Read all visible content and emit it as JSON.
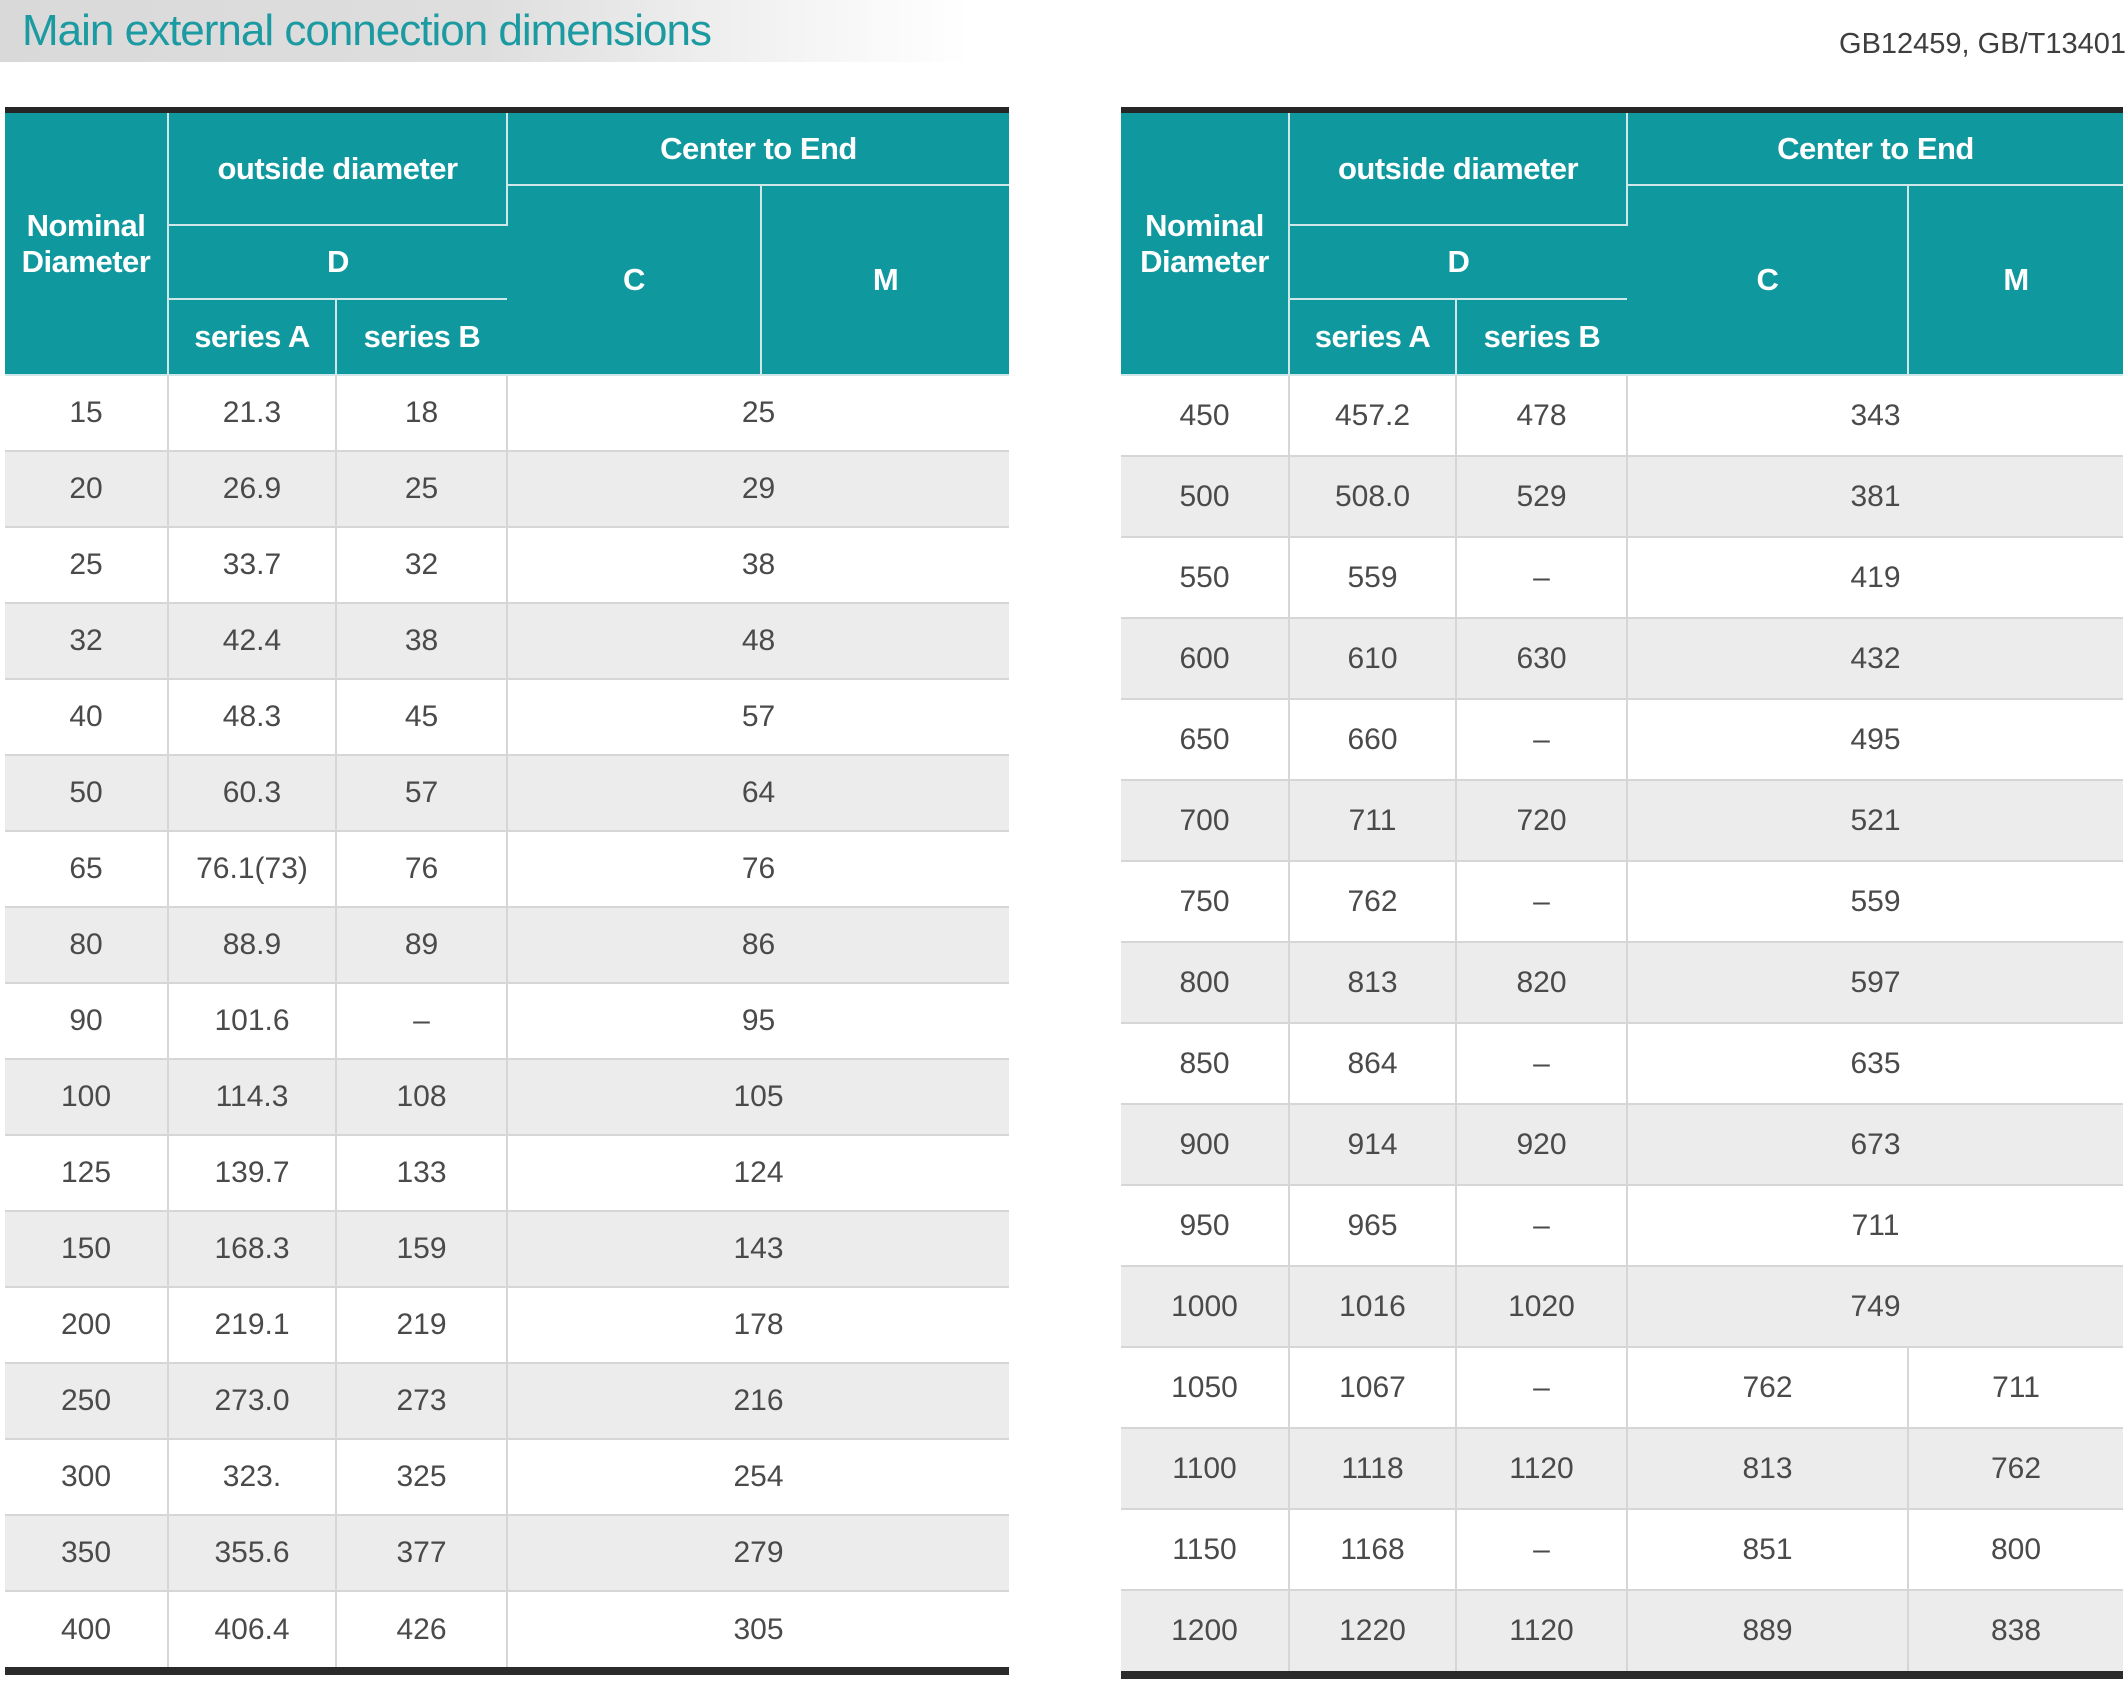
{
  "title": "Main external connection dimensions",
  "standards": "GB12459, GB/T13401",
  "colors": {
    "accent_teal": "#0F989E",
    "row_alt_gray": "#ECECEC",
    "title_teal": "#1B9AA1"
  },
  "header": {
    "nominal_diameter": "Nominal Diameter",
    "outside_diameter": "outside diameter",
    "d": "D",
    "series_a": "series A",
    "series_b": "series B",
    "center_to_end": "Center to End",
    "c": "C",
    "m": "M"
  },
  "tables": [
    {
      "rows": [
        {
          "nd": "15",
          "a": "21.3",
          "b": "18",
          "cm": "25"
        },
        {
          "nd": "20",
          "a": "26.9",
          "b": "25",
          "cm": "29"
        },
        {
          "nd": "25",
          "a": "33.7",
          "b": "32",
          "cm": "38"
        },
        {
          "nd": "32",
          "a": "42.4",
          "b": "38",
          "cm": "48"
        },
        {
          "nd": "40",
          "a": "48.3",
          "b": "45",
          "cm": "57"
        },
        {
          "nd": "50",
          "a": "60.3",
          "b": "57",
          "cm": "64"
        },
        {
          "nd": "65",
          "a": "76.1(73)",
          "b": "76",
          "cm": "76"
        },
        {
          "nd": "80",
          "a": "88.9",
          "b": "89",
          "cm": "86"
        },
        {
          "nd": "90",
          "a": "101.6",
          "b": "–",
          "cm": "95"
        },
        {
          "nd": "100",
          "a": "114.3",
          "b": "108",
          "cm": "105"
        },
        {
          "nd": "125",
          "a": "139.7",
          "b": "133",
          "cm": "124"
        },
        {
          "nd": "150",
          "a": "168.3",
          "b": "159",
          "cm": "143"
        },
        {
          "nd": "200",
          "a": "219.1",
          "b": "219",
          "cm": "178"
        },
        {
          "nd": "250",
          "a": "273.0",
          "b": "273",
          "cm": "216"
        },
        {
          "nd": "300",
          "a": "323.",
          "b": "325",
          "cm": "254"
        },
        {
          "nd": "350",
          "a": "355.6",
          "b": "377",
          "cm": "279"
        },
        {
          "nd": "400",
          "a": "406.4",
          "b": "426",
          "cm": "305"
        }
      ]
    },
    {
      "rows": [
        {
          "nd": "450",
          "a": "457.2",
          "b": "478",
          "cm": "343"
        },
        {
          "nd": "500",
          "a": "508.0",
          "b": "529",
          "cm": "381"
        },
        {
          "nd": "550",
          "a": "559",
          "b": "–",
          "cm": "419"
        },
        {
          "nd": "600",
          "a": "610",
          "b": "630",
          "cm": "432"
        },
        {
          "nd": "650",
          "a": "660",
          "b": "–",
          "cm": "495"
        },
        {
          "nd": "700",
          "a": "711",
          "b": "720",
          "cm": "521"
        },
        {
          "nd": "750",
          "a": "762",
          "b": "–",
          "cm": "559"
        },
        {
          "nd": "800",
          "a": "813",
          "b": "820",
          "cm": "597"
        },
        {
          "nd": "850",
          "a": "864",
          "b": "–",
          "cm": "635"
        },
        {
          "nd": "900",
          "a": "914",
          "b": "920",
          "cm": "673"
        },
        {
          "nd": "950",
          "a": "965",
          "b": "–",
          "cm": "711"
        },
        {
          "nd": "1000",
          "a": "1016",
          "b": "1020",
          "cm": "749"
        },
        {
          "nd": "1050",
          "a": "1067",
          "b": "–",
          "c": "762",
          "m": "711"
        },
        {
          "nd": "1100",
          "a": "1118",
          "b": "1120",
          "c": "813",
          "m": "762"
        },
        {
          "nd": "1150",
          "a": "1168",
          "b": "–",
          "c": "851",
          "m": "800"
        },
        {
          "nd": "1200",
          "a": "1220",
          "b": "1120",
          "c": "889",
          "m": "838"
        }
      ]
    }
  ]
}
